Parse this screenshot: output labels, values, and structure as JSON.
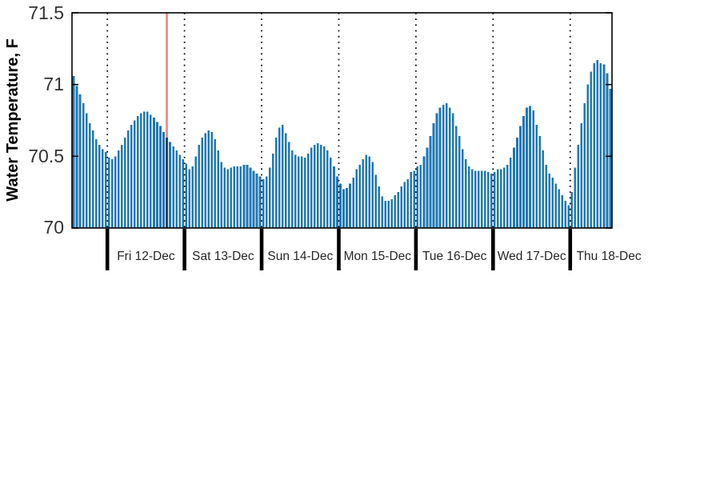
{
  "figure": {
    "background": "#ffffff"
  },
  "chart_data": {
    "type": "bar",
    "title": "",
    "xlabel": "",
    "ylabel": "Water Temperature, F",
    "ylim": [
      70,
      71.5
    ],
    "yticks": [
      70,
      70.5,
      71,
      71.5
    ],
    "ytick_labels": [
      "70",
      "70.5",
      "71",
      "71.5"
    ],
    "x_day_labels": [
      "Fri 12-Dec",
      "Sat 13-Dec",
      "Sun 14-Dec",
      "Mon 15-Dec",
      "Tue 16-Dec",
      "Wed 17-Dec",
      "Thu 18-Dec"
    ],
    "sampling": "hourly",
    "grid": "vertical dotted lines at each midnight day boundary; full box around axes; inward y ticks on left and right",
    "legend": "none",
    "day_start_indices": [
      11,
      35,
      59,
      83,
      107,
      131,
      155
    ],
    "current_time_index": 29,
    "values": [
      71.06,
      70.99,
      70.93,
      70.87,
      70.8,
      70.73,
      70.68,
      70.62,
      70.58,
      70.55,
      70.53,
      70.49,
      70.48,
      70.5,
      70.54,
      70.58,
      70.63,
      70.68,
      70.72,
      70.75,
      70.78,
      70.8,
      70.81,
      70.81,
      70.79,
      70.77,
      70.74,
      70.71,
      70.67,
      70.63,
      70.6,
      70.57,
      70.54,
      70.51,
      70.48,
      70.45,
      70.41,
      70.43,
      70.5,
      70.58,
      70.63,
      70.66,
      70.68,
      70.67,
      70.62,
      70.54,
      70.46,
      70.42,
      70.41,
      70.42,
      70.43,
      70.43,
      70.43,
      70.44,
      70.44,
      70.42,
      70.4,
      70.38,
      70.36,
      70.34,
      70.36,
      70.42,
      70.52,
      70.63,
      70.7,
      70.72,
      70.66,
      70.6,
      70.54,
      70.51,
      70.5,
      70.5,
      70.49,
      70.52,
      70.56,
      70.58,
      70.59,
      70.58,
      70.57,
      70.54,
      70.49,
      70.43,
      70.36,
      70.31,
      70.27,
      70.28,
      70.31,
      70.35,
      70.41,
      70.44,
      70.48,
      70.51,
      70.5,
      70.46,
      70.37,
      70.29,
      70.22,
      70.19,
      70.19,
      70.2,
      70.23,
      70.25,
      70.29,
      70.32,
      70.34,
      70.39,
      70.4,
      70.43,
      70.44,
      70.5,
      70.56,
      70.64,
      70.73,
      70.8,
      70.84,
      70.86,
      70.87,
      70.84,
      70.8,
      70.71,
      70.64,
      70.55,
      70.48,
      70.43,
      70.41,
      70.4,
      70.4,
      70.4,
      70.4,
      70.39,
      70.38,
      70.39,
      70.41,
      70.41,
      70.42,
      70.44,
      70.49,
      70.56,
      70.63,
      70.71,
      70.78,
      70.84,
      70.85,
      70.82,
      70.72,
      70.64,
      70.54,
      70.44,
      70.38,
      70.35,
      70.31,
      70.27,
      70.23,
      70.19,
      70.16,
      70.25,
      70.42,
      70.58,
      70.73,
      70.87,
      71.0,
      71.09,
      71.15,
      71.17,
      71.15,
      71.14,
      71.08,
      70.97
    ],
    "colors": {
      "bar": "#1f77b4",
      "current_time_line": "#f28b89",
      "axis": "#000000",
      "day_gridline": "#111111",
      "tick_text": "#333333"
    }
  }
}
